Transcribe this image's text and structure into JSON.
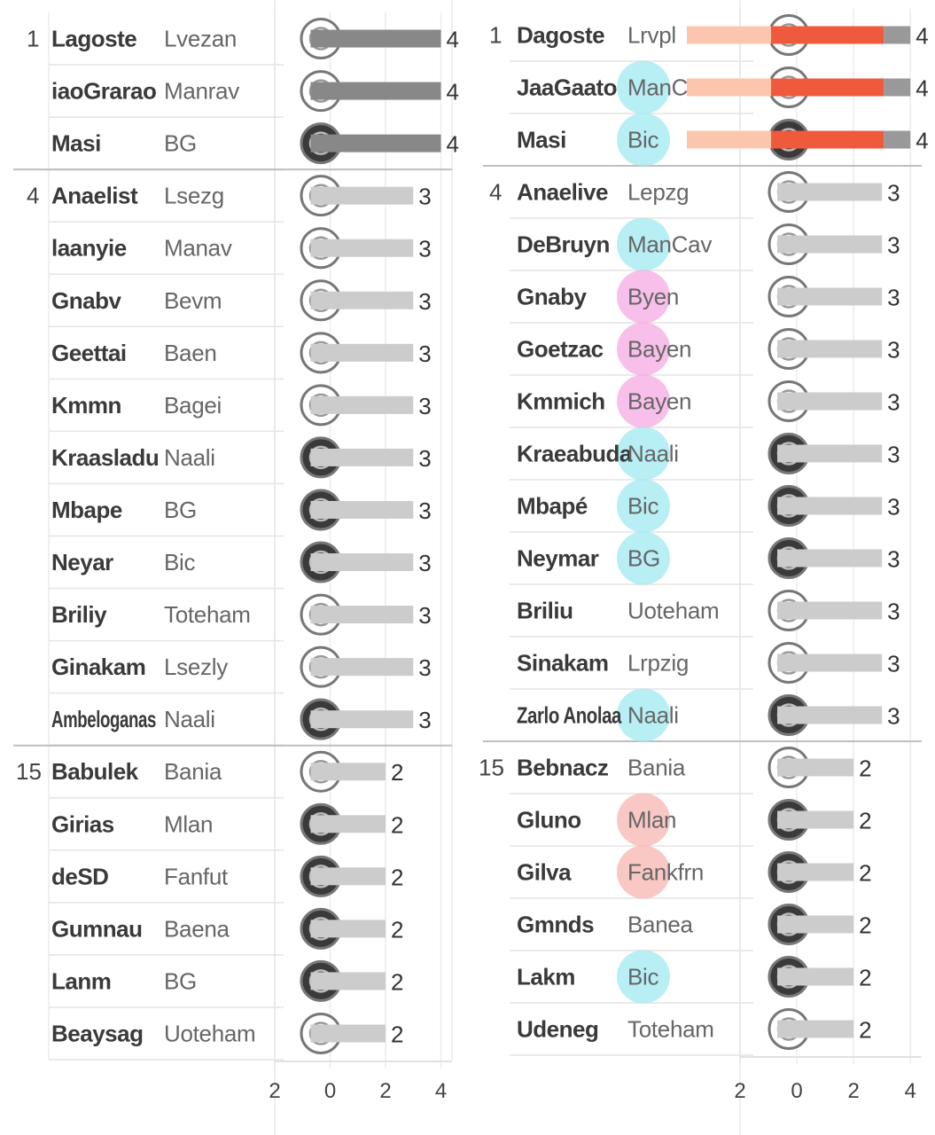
{
  "charts": [
    {
      "panel": "left",
      "rows": [
        {
          "rank": "1",
          "name": "Lagoste",
          "club": "Lvezan",
          "value": 4,
          "highlight": "dark"
        },
        {
          "rank": "",
          "name": "iaoGrarao",
          "club": "Manrav",
          "value": 4,
          "highlight": "dark"
        },
        {
          "rank": "",
          "name": "Masi",
          "club": "BG",
          "value": 4,
          "highlight": "dark"
        },
        {
          "rank": "4",
          "name": "Anaelist",
          "club": "Lsezg",
          "value": 3,
          "highlight": "none"
        },
        {
          "rank": "",
          "name": "laanyie",
          "club": "Manav",
          "value": 3,
          "highlight": "none"
        },
        {
          "rank": "",
          "name": "Gnabv",
          "club": "Bevm",
          "value": 3,
          "highlight": "none"
        },
        {
          "rank": "",
          "name": "Geettai",
          "club": "Baen",
          "value": 3,
          "highlight": "none"
        },
        {
          "rank": "",
          "name": "Kmmn",
          "club": "Bagei",
          "value": 3,
          "highlight": "none"
        },
        {
          "rank": "",
          "name": "Kraasladu",
          "club": "Naali",
          "value": 3,
          "highlight": "none"
        },
        {
          "rank": "",
          "name": "Mbape",
          "club": "BG",
          "value": 3,
          "highlight": "none"
        },
        {
          "rank": "",
          "name": "Neyar",
          "club": "Bic",
          "value": 3,
          "highlight": "none"
        },
        {
          "rank": "",
          "name": "Briliy",
          "club": "Toteham",
          "value": 3,
          "highlight": "none"
        },
        {
          "rank": "",
          "name": "Ginakam",
          "club": "Lsezly",
          "value": 3,
          "highlight": "none"
        },
        {
          "rank": "",
          "name": "Ambeloganas",
          "club": "Naali",
          "value": 3,
          "highlight": "none"
        },
        {
          "rank": "15",
          "name": "Babulek",
          "club": "Bania",
          "value": 2,
          "highlight": "none"
        },
        {
          "rank": "",
          "name": "Girias",
          "club": "Mlan",
          "value": 2,
          "highlight": "none"
        },
        {
          "rank": "",
          "name": "deSD",
          "club": "Fanfut",
          "value": 2,
          "highlight": "none"
        },
        {
          "rank": "",
          "name": "Gumnau",
          "club": "Baena",
          "value": 2,
          "highlight": "none"
        },
        {
          "rank": "",
          "name": "Lanm",
          "club": "BG",
          "value": 2,
          "highlight": "none"
        },
        {
          "rank": "",
          "name": "Beaysag",
          "club": "Uoteham",
          "value": 2,
          "highlight": "none"
        }
      ],
      "x_ticks": [
        "2",
        "0",
        "2",
        "4"
      ]
    },
    {
      "panel": "right",
      "rows": [
        {
          "rank": "1",
          "name": "Dagoste",
          "club": "Lrvpl",
          "value": 4,
          "highlight": "red"
        },
        {
          "rank": "",
          "name": "JaaGaato",
          "club": "ManCav",
          "value": 4,
          "highlight": "red"
        },
        {
          "rank": "",
          "name": "Masi",
          "club": "Bic",
          "value": 4,
          "highlight": "red"
        },
        {
          "rank": "4",
          "name": "Anaelive",
          "club": "Lepzg",
          "value": 3,
          "highlight": "none"
        },
        {
          "rank": "",
          "name": "DeBruyn",
          "club": "ManCav",
          "value": 3,
          "highlight": "none"
        },
        {
          "rank": "",
          "name": "Gnaby",
          "club": "Byen",
          "value": 3,
          "highlight": "none"
        },
        {
          "rank": "",
          "name": "Goetzac",
          "club": "Bayen",
          "value": 3,
          "highlight": "none"
        },
        {
          "rank": "",
          "name": "Kmmich",
          "club": "Bayen",
          "value": 3,
          "highlight": "none"
        },
        {
          "rank": "",
          "name": "Kraeabuda",
          "club": "Naali",
          "value": 3,
          "highlight": "none"
        },
        {
          "rank": "",
          "name": "Mbapé",
          "club": "Bic",
          "value": 3,
          "highlight": "none"
        },
        {
          "rank": "",
          "name": "Neymar",
          "club": "BG",
          "value": 3,
          "highlight": "none"
        },
        {
          "rank": "",
          "name": "Briliu",
          "club": "Uoteham",
          "value": 3,
          "highlight": "none"
        },
        {
          "rank": "",
          "name": "Sinakam",
          "club": "Lrpzig",
          "value": 3,
          "highlight": "none"
        },
        {
          "rank": "",
          "name": "Zarlo Anolaa",
          "club": "Naali",
          "value": 3,
          "highlight": "none"
        },
        {
          "rank": "15",
          "name": "Bebnacz",
          "club": "Bania",
          "value": 2,
          "highlight": "none"
        },
        {
          "rank": "",
          "name": "Gluno",
          "club": "Mlan",
          "value": 2,
          "highlight": "none"
        },
        {
          "rank": "",
          "name": "Gilva",
          "club": "Fankfrn",
          "value": 2,
          "highlight": "none"
        },
        {
          "rank": "",
          "name": "Gmnds",
          "club": "Banea",
          "value": 2,
          "highlight": "none"
        },
        {
          "rank": "",
          "name": "Lakm",
          "club": "Bic",
          "value": 2,
          "highlight": "none"
        },
        {
          "rank": "",
          "name": "Udeneg",
          "club": "Toteham",
          "value": 2,
          "highlight": "none"
        }
      ],
      "x_ticks": [
        "2",
        "0",
        "2",
        "4"
      ]
    }
  ],
  "chart_data": [
    {
      "type": "bar",
      "orientation": "horizontal",
      "categories": [
        "Lagoste",
        "iaoGrarao",
        "Masi",
        "Anaelist",
        "laanyie",
        "Gnabv",
        "Geettai",
        "Kmmn",
        "Kraasladu",
        "Mbape",
        "Neyar",
        "Briliy",
        "Ginakam",
        "Ambeloganas",
        "Babulek",
        "Girias",
        "deSD",
        "Gumnau",
        "Lanm",
        "Beaysag"
      ],
      "values": [
        4,
        4,
        4,
        3,
        3,
        3,
        3,
        3,
        3,
        3,
        3,
        3,
        3,
        3,
        2,
        2,
        2,
        2,
        2,
        2
      ],
      "xlim": [
        -2,
        4.4
      ],
      "xticks": [
        -2,
        0,
        2,
        4
      ],
      "grid": true,
      "colors": {
        "top": "#888888",
        "rest": "#cccccc"
      }
    },
    {
      "type": "bar",
      "orientation": "horizontal",
      "categories": [
        "Dagoste",
        "JaaGaato",
        "Masi",
        "Anaelive",
        "DeBruyn",
        "Gnaby",
        "Goetzac",
        "Kmmich",
        "Kraeabuda",
        "Mbapé",
        "Neymar",
        "Briliu",
        "Sinakam",
        "Zarlo Anolaa",
        "Bebnacz",
        "Gluno",
        "Gilva",
        "Gmnds",
        "Lakm",
        "Udeneg"
      ],
      "values": [
        4,
        4,
        4,
        3,
        3,
        3,
        3,
        3,
        3,
        3,
        3,
        3,
        3,
        3,
        2,
        2,
        2,
        2,
        2,
        2
      ],
      "xlim": [
        -2,
        4.4
      ],
      "xticks": [
        -2,
        0,
        2,
        4
      ],
      "grid": true,
      "colors": {
        "top": "#f05a3c",
        "top_light": "#fbc6ad",
        "top_end": "#999999",
        "rest": "#cccccc"
      }
    }
  ],
  "colors": {
    "row_line": "#e4e4e4",
    "group_line": "#bfbfbf",
    "badge_cyan": "#9fe9f1",
    "badge_pink": "#f4a9e2",
    "badge_red": "#f7b6b0",
    "badge_yellow": "#f8e26a",
    "crest_dark": "#333333"
  }
}
